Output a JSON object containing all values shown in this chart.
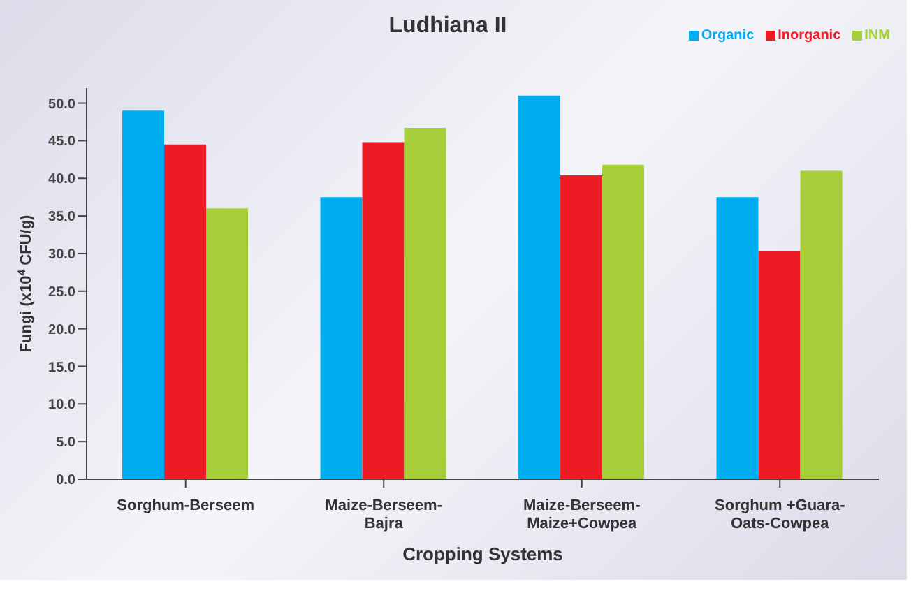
{
  "chart_data": {
    "type": "bar",
    "title": "Ludhiana II",
    "xlabel": "Cropping Systems",
    "ylabel": "Fungi (x10$^{4}$ CFU/g)",
    "categories": [
      "Sorghum-Berseem",
      "Maize-Berseem-Bajra",
      "Maize-Berseem-Maize+Cowpea",
      "Sorghum +Guara-Oats-Cowpea"
    ],
    "series": [
      {
        "name": "Organic",
        "color": "#00adef",
        "values": [
          49.0,
          37.5,
          51.0,
          37.5
        ]
      },
      {
        "name": "Inorganic",
        "color": "#ed1c24",
        "values": [
          44.5,
          44.8,
          40.4,
          30.3
        ]
      },
      {
        "name": "INM",
        "color": "#a6ce39",
        "values": [
          36.0,
          46.7,
          41.8,
          41.0
        ]
      }
    ],
    "ylim": [
      0,
      52
    ],
    "yticks": [
      {
        "value": 0,
        "label": "0.0"
      },
      {
        "value": 5,
        "label": "5.0"
      },
      {
        "value": 10,
        "label": "10.0"
      },
      {
        "value": 15,
        "label": "15.0"
      },
      {
        "value": 20,
        "label": "20.0"
      },
      {
        "value": 25,
        "label": "25.0"
      },
      {
        "value": 30,
        "label": "30.0"
      },
      {
        "value": 35,
        "label": "35.0"
      },
      {
        "value": 40,
        "label": "40.0"
      },
      {
        "value": 45,
        "label": "45.0"
      },
      {
        "value": 50,
        "label": "50.0"
      }
    ],
    "grid": false,
    "legend": "top right"
  }
}
